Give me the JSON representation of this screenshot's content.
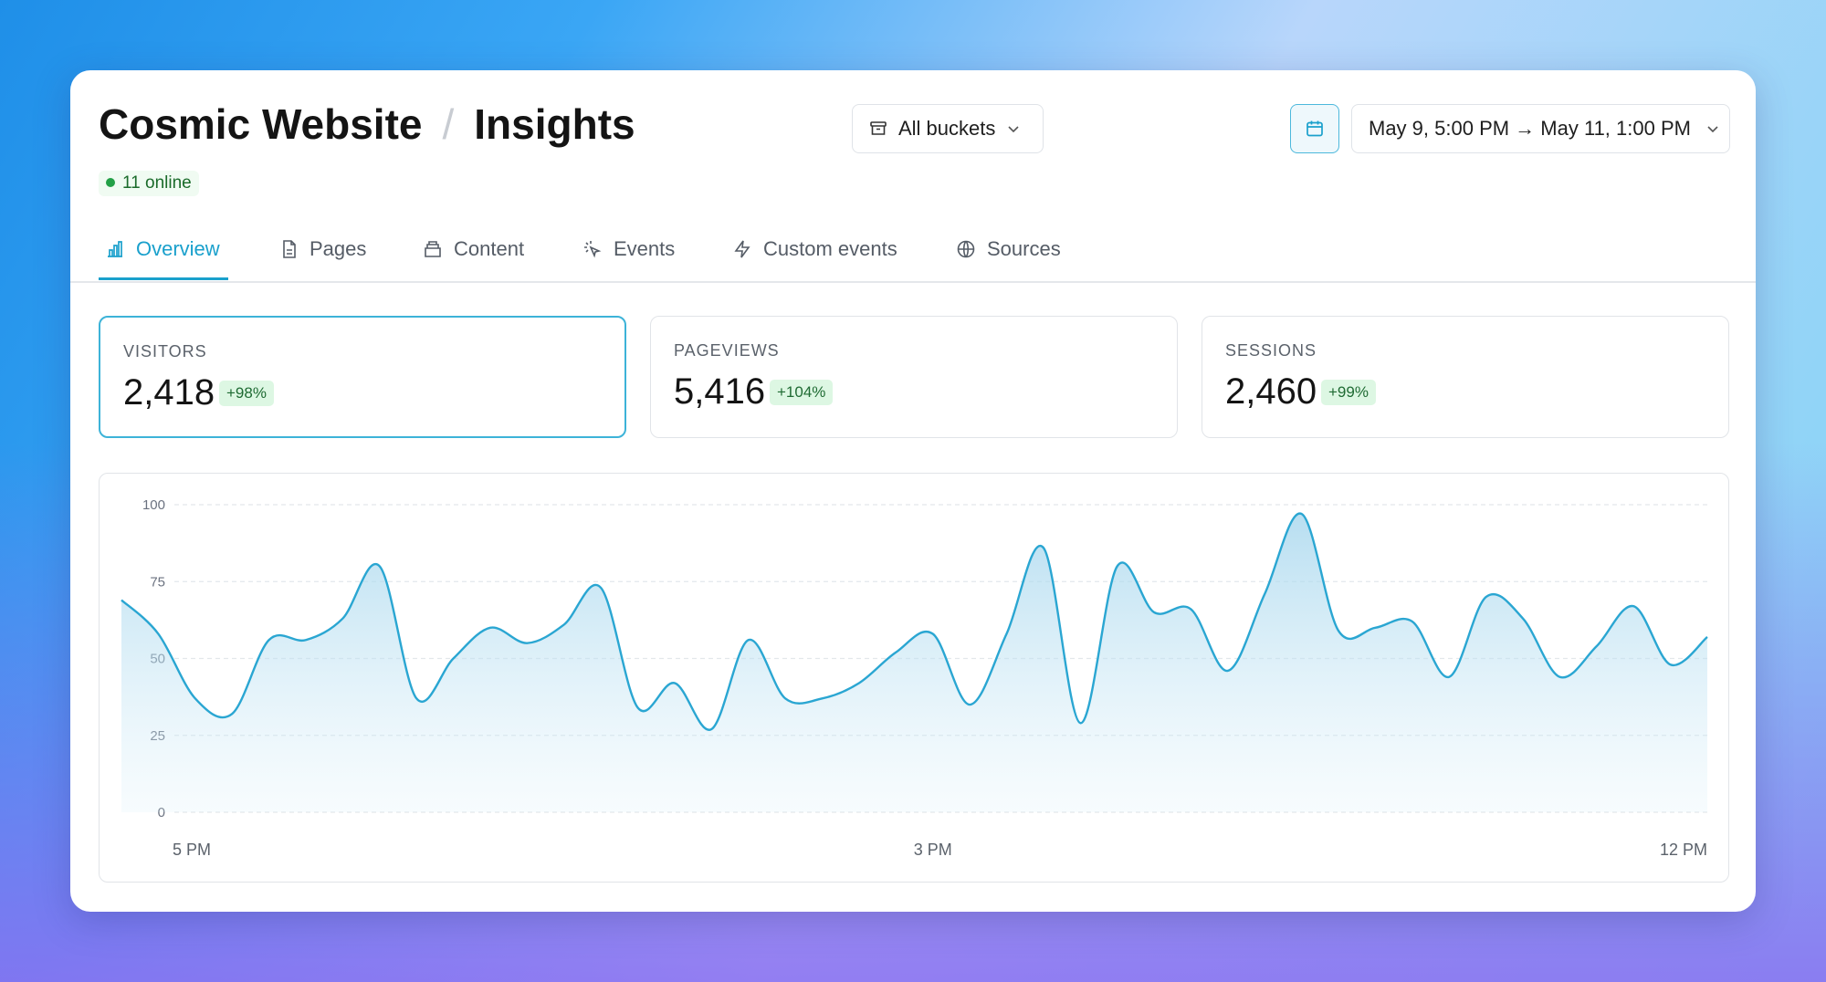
{
  "header": {
    "title": "Cosmic Website",
    "separator": "/",
    "subtitle": "Insights",
    "online": "11 online"
  },
  "controls": {
    "bucket": "All buckets",
    "date_range": "May 9, 5:00 PM → May 11, 1:00 PM"
  },
  "tabs": [
    "Overview",
    "Pages",
    "Content",
    "Events",
    "Custom events",
    "Sources"
  ],
  "stats": [
    {
      "label": "VISITORS",
      "value": "2,418",
      "change": "+98%"
    },
    {
      "label": "PAGEVIEWS",
      "value": "5,416",
      "change": "+104%"
    },
    {
      "label": "SESSIONS",
      "value": "2,460",
      "change": "+99%"
    }
  ],
  "chart_data": {
    "type": "area",
    "color": "#2aa6d2",
    "grid": true,
    "categories": [
      "5 PM",
      null,
      null,
      null,
      null,
      null,
      null,
      null,
      null,
      null,
      null,
      null,
      null,
      null,
      null,
      null,
      null,
      null,
      null,
      null,
      null,
      null,
      "3 PM",
      null,
      null,
      null,
      null,
      null,
      null,
      null,
      null,
      null,
      null,
      null,
      null,
      null,
      null,
      null,
      null,
      null,
      null,
      null,
      null,
      "12 PM"
    ],
    "values": [
      69,
      58,
      37,
      32,
      56,
      56,
      63,
      80,
      37,
      50,
      60,
      55,
      61,
      73,
      34,
      42,
      27,
      56,
      37,
      37,
      42,
      52,
      58,
      35,
      58,
      86,
      29,
      80,
      65,
      66,
      46,
      71,
      97,
      59,
      60,
      62,
      44,
      70,
      63,
      44,
      54,
      67,
      48,
      57
    ],
    "ylim": [
      0,
      100
    ],
    "yticks": [
      0,
      25,
      50,
      75,
      100
    ]
  }
}
